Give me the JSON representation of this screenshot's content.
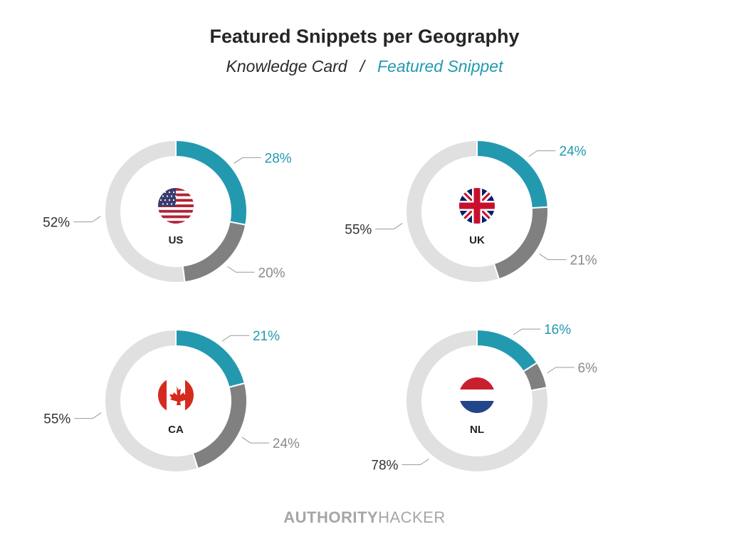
{
  "chart_data": {
    "type": "pie",
    "variant": "donut",
    "title": "Featured Snippets per Geography",
    "legend": [
      {
        "name": "Knowledge Card",
        "color": "#808080"
      },
      {
        "name": "Featured Snippet",
        "color": "#2399b0"
      }
    ],
    "legend_separator": "/",
    "legend_placement": "top",
    "other_color": "#e0e0e0",
    "charts": [
      {
        "label": "US",
        "flag": "us-flag-icon",
        "featured_snippet": 28,
        "knowledge_card": 20,
        "other": 52
      },
      {
        "label": "UK",
        "flag": "uk-flag-icon",
        "featured_snippet": 24,
        "knowledge_card": 21,
        "other": 55
      },
      {
        "label": "CA",
        "flag": "ca-flag-icon",
        "featured_snippet": 21,
        "knowledge_card": 24,
        "other": 55
      },
      {
        "label": "NL",
        "flag": "nl-flag-icon",
        "featured_snippet": 16,
        "knowledge_card": 6,
        "other": 78
      }
    ],
    "unit": "%"
  },
  "brand": {
    "bold": "AUTHORITY",
    "light": "HACKER"
  }
}
